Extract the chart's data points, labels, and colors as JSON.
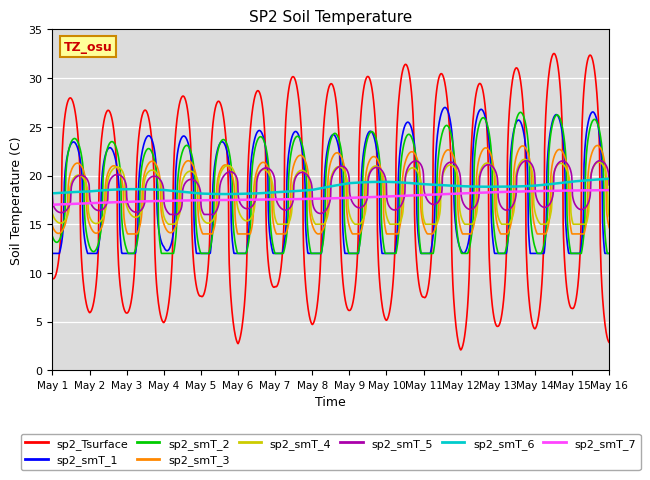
{
  "title": "SP2 Soil Temperature",
  "ylabel": "Soil Temperature (C)",
  "xlabel": "Time",
  "ylim": [
    0,
    35
  ],
  "xlim": [
    0,
    360
  ],
  "tz_label": "TZ_osu",
  "bg_color": "#dcdcdc",
  "series_order": [
    "sp2_Tsurface",
    "sp2_smT_1",
    "sp2_smT_2",
    "sp2_smT_3",
    "sp2_smT_4",
    "sp2_smT_5",
    "sp2_smT_6",
    "sp2_smT_7"
  ],
  "series": {
    "sp2_Tsurface": {
      "color": "#ff0000",
      "lw": 1.2
    },
    "sp2_smT_1": {
      "color": "#0000ff",
      "lw": 1.2
    },
    "sp2_smT_2": {
      "color": "#00cc00",
      "lw": 1.2
    },
    "sp2_smT_3": {
      "color": "#ff8800",
      "lw": 1.2
    },
    "sp2_smT_4": {
      "color": "#cccc00",
      "lw": 1.2
    },
    "sp2_smT_5": {
      "color": "#aa00aa",
      "lw": 1.2
    },
    "sp2_smT_6": {
      "color": "#00cccc",
      "lw": 1.8
    },
    "sp2_smT_7": {
      "color": "#ff44ff",
      "lw": 1.8
    }
  },
  "xtick_positions": [
    0,
    24,
    48,
    72,
    96,
    120,
    144,
    168,
    192,
    216,
    240,
    264,
    288,
    312,
    336,
    360
  ],
  "xtick_labels": [
    "May 1",
    "May 2",
    "May 3",
    "May 4",
    "May 5",
    "May 6",
    "May 7",
    "May 8",
    "May 9",
    "May 10",
    "May 11",
    "May 12",
    "May 13",
    "May 14",
    "May 15",
    "May 16"
  ]
}
